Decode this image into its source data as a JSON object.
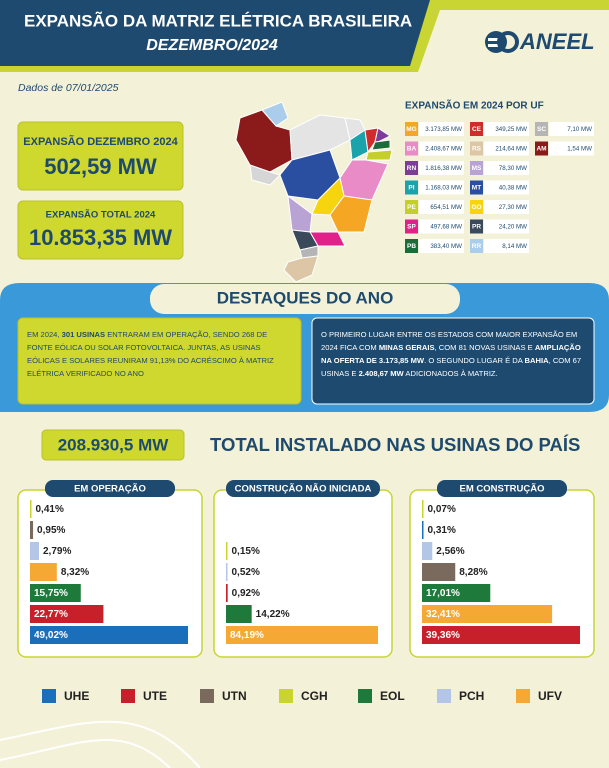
{
  "header": {
    "title": "EXPANSÃO DA MATRIZ ELÉTRICA BRASILEIRA",
    "subtitle": "DEZEMBRO/2024",
    "logo": "ANEEL"
  },
  "date": "Dados de 07/01/2025",
  "kpis": [
    {
      "label": "EXPANSÃO DEZEMBRO 2024",
      "value": "502,59 MW"
    },
    {
      "label": "EXPANSÃO TOTAL 2024",
      "value": "10.853,35 MW"
    }
  ],
  "uf_table": {
    "title": "EXPANSÃO EM 2024 POR UF",
    "columns": [
      [
        {
          "uf": "MG",
          "value": "3.173,85 MW",
          "color": "#f5a623"
        },
        {
          "uf": "BA",
          "value": "2.408,67 MW",
          "color": "#e98bc6"
        },
        {
          "uf": "RN",
          "value": "1.816,38 MW",
          "color": "#7d3c98"
        },
        {
          "uf": "PI",
          "value": "1.168,03 MW",
          "color": "#1aa3ab"
        },
        {
          "uf": "PE",
          "value": "654,51 MW",
          "color": "#c4cf2a"
        },
        {
          "uf": "SP",
          "value": "497,68 MW",
          "color": "#e0218a"
        },
        {
          "uf": "PB",
          "value": "383,40 MW",
          "color": "#1c6b3a"
        }
      ],
      [
        {
          "uf": "CE",
          "value": "349,25 MW",
          "color": "#d12b2b"
        },
        {
          "uf": "RS",
          "value": "214,64 MW",
          "color": "#dcc6a6"
        },
        {
          "uf": "MS",
          "value": "78,30 MW",
          "color": "#b9a2d4"
        },
        {
          "uf": "MT",
          "value": "40,38 MW",
          "color": "#2b4fa0"
        },
        {
          "uf": "GO",
          "value": "27,30 MW",
          "color": "#f6d50f"
        },
        {
          "uf": "PR",
          "value": "24,20 MW",
          "color": "#3b4a5a"
        },
        {
          "uf": "RR",
          "value": "8,14 MW",
          "color": "#a9cdea"
        }
      ],
      [
        {
          "uf": "SC",
          "value": "7,10 MW",
          "color": "#b5b5b5"
        },
        {
          "uf": "AM",
          "value": "1,54 MW",
          "color": "#8b1a1a"
        }
      ]
    ]
  },
  "highlights": {
    "title": "DESTAQUES DO ANO",
    "paragraphs": [
      [
        {
          "text": "EM 2024, ",
          "bold": false
        },
        {
          "text": "301 USINAS",
          "bold": true
        },
        {
          "text": " ENTRARAM EM OPERAÇÃO, SENDO 268 DE FONTE EÓLICA OU SOLAR FOTOVOLTAICA. JUNTAS, AS USINAS EÓLICAS E SOLARES REUNIRAM 91,13% DO ACRÉSCIMO À MATRIZ ELÉTRICA VERIFICADO NO ANO",
          "bold": false
        }
      ],
      [
        {
          "text": "O PRIMEIRO LUGAR ENTRE OS ESTADOS COM MAIOR EXPANSÃO EM 2024 FICA COM ",
          "bold": false
        },
        {
          "text": "MINAS GERAIS",
          "bold": true
        },
        {
          "text": ", COM 81 NOVAS USINAS E ",
          "bold": false
        },
        {
          "text": "AMPLIAÇÃO NA OFERTA DE 3.173,85 MW",
          "bold": true
        },
        {
          "text": ". O SEGUNDO LUGAR É DA ",
          "bold": false
        },
        {
          "text": "BAHIA",
          "bold": true
        },
        {
          "text": ", COM 67 USINAS E ",
          "bold": false
        },
        {
          "text": "2.408,67 MW",
          "bold": true
        },
        {
          "text": " ADICIONADOS À MATRIZ.",
          "bold": false
        }
      ]
    ]
  },
  "total": {
    "value": "208.930,5 MW",
    "label": "TOTAL INSTALADO NAS USINAS DO PAÍS"
  },
  "chart_data": [
    {
      "type": "bar",
      "title": "EM OPERAÇÃO",
      "values": [
        0.41,
        0.95,
        2.79,
        8.32,
        15.75,
        22.77,
        49.02
      ],
      "value_labels": [
        "0,41%",
        "0,95%",
        "2,79%",
        "8,32%",
        "15,75%",
        "22,77%",
        "49,02%"
      ],
      "colors": [
        "#c9d42f",
        "#7a6a5e",
        "#b3c6e7",
        "#f5a833",
        "#1d7a3a",
        "#c8202a",
        "#1b6fba"
      ]
    },
    {
      "type": "bar",
      "title": "CONSTRUÇÃO NÃO INICIADA",
      "values": [
        0.15,
        0.52,
        0.92,
        14.22,
        84.19
      ],
      "value_labels": [
        "0,15%",
        "0,52%",
        "0,92%",
        "14,22%",
        "84,19%"
      ],
      "colors": [
        "#c9d42f",
        "#b3c6e7",
        "#c8202a",
        "#1d7a3a",
        "#f5a833"
      ]
    },
    {
      "type": "bar",
      "title": "EM CONSTRUÇÃO",
      "values": [
        0.07,
        0.31,
        2.56,
        8.28,
        17.01,
        32.41,
        39.36
      ],
      "value_labels": [
        "0,07%",
        "0,31%",
        "2,56%",
        "8,28%",
        "17,01%",
        "32,41%",
        "39,36%"
      ],
      "colors": [
        "#c9d42f",
        "#1b6fba",
        "#b3c6e7",
        "#7a6a5e",
        "#1d7a3a",
        "#f5a833",
        "#c8202a"
      ]
    }
  ],
  "legend": [
    {
      "name": "UHE",
      "color": "#1b6fba"
    },
    {
      "name": "UTE",
      "color": "#c8202a"
    },
    {
      "name": "UTN",
      "color": "#7a6a5e"
    },
    {
      "name": "CGH",
      "color": "#c9d42f"
    },
    {
      "name": "EOL",
      "color": "#1d7a3a"
    },
    {
      "name": "PCH",
      "color": "#b3c6e7"
    },
    {
      "name": "UFV",
      "color": "#f5a833"
    }
  ]
}
